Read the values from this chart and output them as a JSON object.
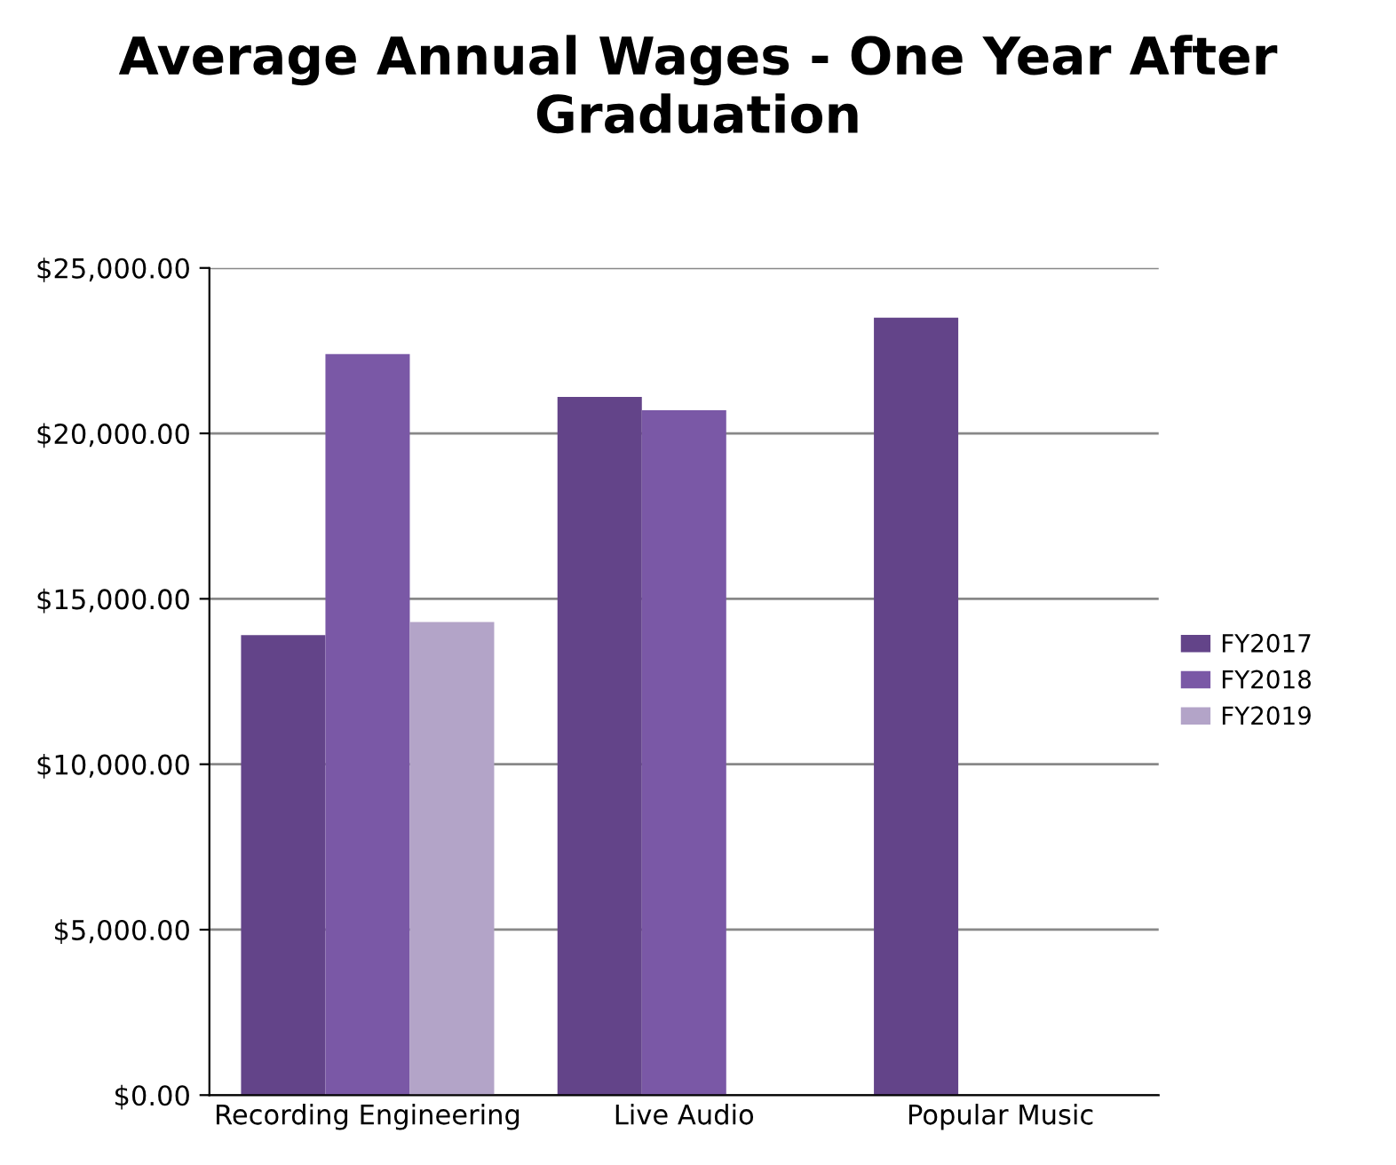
{
  "chart_data": {
    "type": "bar",
    "title": "Average Annual Wages - One Year After Graduation",
    "categories": [
      "Recording Engineering",
      "Live Audio",
      "Popular Music"
    ],
    "series": [
      {
        "name": "FY2017",
        "color": "#634489",
        "values": [
          13900,
          21100,
          23500
        ]
      },
      {
        "name": "FY2018",
        "color": "#7a58a6",
        "values": [
          22400,
          20700,
          null
        ]
      },
      {
        "name": "FY2019",
        "color": "#b3a4c8",
        "values": [
          14300,
          null,
          0
        ]
      }
    ],
    "ylim": [
      0,
      25000
    ],
    "yticks": [
      {
        "value": 0,
        "label": "$0.00"
      },
      {
        "value": 5000,
        "label": "$5,000.00"
      },
      {
        "value": 10000,
        "label": "$10,000.00"
      },
      {
        "value": 15000,
        "label": "$15,000.00"
      },
      {
        "value": 20000,
        "label": "$20,000.00"
      },
      {
        "value": 25000,
        "label": "$25,000.00"
      }
    ],
    "grid": "y",
    "legend": "right"
  }
}
